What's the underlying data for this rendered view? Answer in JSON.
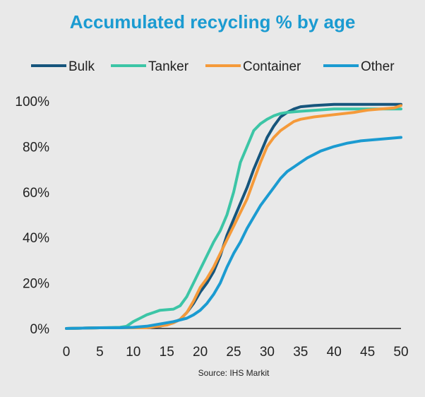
{
  "chart_data": {
    "type": "line",
    "title": "Accumulated recycling % by age",
    "source": "Source: IHS Markit",
    "xlim": [
      0,
      50
    ],
    "ylim": [
      0,
      100
    ],
    "x_ticks": [
      0,
      5,
      10,
      15,
      20,
      25,
      30,
      35,
      40,
      45,
      50
    ],
    "y_ticks": [
      0,
      20,
      40,
      60,
      80,
      100
    ],
    "y_tick_labels": [
      "0%",
      "20%",
      "40%",
      "60%",
      "80%",
      "100%"
    ],
    "grid": false,
    "legend_position": "top",
    "series": [
      {
        "name": "Bulk",
        "color": "#16557c",
        "points": [
          [
            0,
            0
          ],
          [
            5,
            0.3
          ],
          [
            10,
            0.3
          ],
          [
            12,
            0.3
          ],
          [
            14,
            1
          ],
          [
            16,
            2.5
          ],
          [
            17,
            4
          ],
          [
            18,
            7
          ],
          [
            19,
            11
          ],
          [
            20,
            16
          ],
          [
            21,
            20
          ],
          [
            22,
            25
          ],
          [
            23,
            32
          ],
          [
            24,
            41
          ],
          [
            25,
            48
          ],
          [
            26,
            55
          ],
          [
            27,
            62
          ],
          [
            28,
            70
          ],
          [
            29,
            77
          ],
          [
            30,
            84
          ],
          [
            31,
            89
          ],
          [
            32,
            93
          ],
          [
            33,
            95
          ],
          [
            34,
            96.5
          ],
          [
            35,
            97.5
          ],
          [
            37,
            98
          ],
          [
            40,
            98.5
          ],
          [
            45,
            98.5
          ],
          [
            50,
            98.5
          ]
        ]
      },
      {
        "name": "Tanker",
        "color": "#3cc5a6",
        "points": [
          [
            0,
            0
          ],
          [
            5,
            0.3
          ],
          [
            8,
            0.5
          ],
          [
            9,
            1
          ],
          [
            10,
            3
          ],
          [
            11,
            4.5
          ],
          [
            12,
            6
          ],
          [
            13,
            7
          ],
          [
            14,
            8
          ],
          [
            16,
            8.5
          ],
          [
            17,
            10
          ],
          [
            18,
            14
          ],
          [
            19,
            20
          ],
          [
            20,
            26
          ],
          [
            21,
            32
          ],
          [
            22,
            38
          ],
          [
            23,
            43
          ],
          [
            24,
            50
          ],
          [
            25,
            60
          ],
          [
            26,
            73
          ],
          [
            27,
            80
          ],
          [
            28,
            87
          ],
          [
            29,
            90
          ],
          [
            30,
            92
          ],
          [
            31,
            93.5
          ],
          [
            32,
            94.5
          ],
          [
            33,
            95
          ],
          [
            35,
            95.5
          ],
          [
            40,
            96.5
          ],
          [
            45,
            96.5
          ],
          [
            50,
            96.5
          ]
        ]
      },
      {
        "name": "Container",
        "color": "#f59a3a",
        "points": [
          [
            0,
            0
          ],
          [
            5,
            0.3
          ],
          [
            10,
            0.3
          ],
          [
            12,
            0.3
          ],
          [
            15,
            1.5
          ],
          [
            16,
            2.5
          ],
          [
            17,
            4
          ],
          [
            18,
            7
          ],
          [
            19,
            12
          ],
          [
            20,
            18
          ],
          [
            21,
            22
          ],
          [
            22,
            27
          ],
          [
            23,
            33
          ],
          [
            24,
            39
          ],
          [
            25,
            45
          ],
          [
            26,
            51
          ],
          [
            27,
            57
          ],
          [
            28,
            65
          ],
          [
            29,
            73
          ],
          [
            30,
            80
          ],
          [
            31,
            84
          ],
          [
            32,
            87
          ],
          [
            33,
            89
          ],
          [
            34,
            91
          ],
          [
            35,
            92
          ],
          [
            37,
            93
          ],
          [
            40,
            94
          ],
          [
            43,
            95
          ],
          [
            45,
            96
          ],
          [
            47,
            96.5
          ],
          [
            49,
            97
          ],
          [
            50,
            98
          ]
        ]
      },
      {
        "name": "Other",
        "color": "#1b9bd1",
        "points": [
          [
            0,
            0
          ],
          [
            5,
            0.3
          ],
          [
            8,
            0.3
          ],
          [
            10,
            0.5
          ],
          [
            12,
            1
          ],
          [
            14,
            2
          ],
          [
            16,
            3
          ],
          [
            18,
            4.5
          ],
          [
            19,
            6
          ],
          [
            20,
            8
          ],
          [
            21,
            11
          ],
          [
            22,
            15
          ],
          [
            23,
            20
          ],
          [
            24,
            27
          ],
          [
            25,
            33
          ],
          [
            26,
            38
          ],
          [
            27,
            44
          ],
          [
            28,
            49
          ],
          [
            29,
            54
          ],
          [
            30,
            58
          ],
          [
            31,
            62
          ],
          [
            32,
            66
          ],
          [
            33,
            69
          ],
          [
            34,
            71
          ],
          [
            35,
            73
          ],
          [
            36,
            75
          ],
          [
            37,
            76.5
          ],
          [
            38,
            78
          ],
          [
            40,
            80
          ],
          [
            42,
            81.5
          ],
          [
            44,
            82.5
          ],
          [
            46,
            83
          ],
          [
            48,
            83.5
          ],
          [
            50,
            84
          ]
        ]
      }
    ]
  }
}
